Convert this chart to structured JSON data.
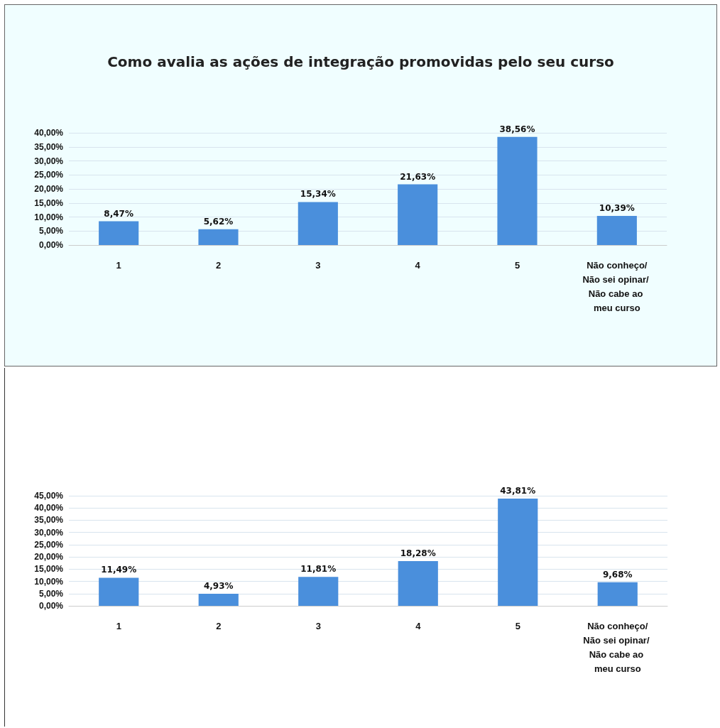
{
  "chart_data": [
    {
      "type": "bar",
      "title": "Como avalia as ações de integração promovidas pelo seu curso",
      "categories": [
        "1",
        "2",
        "3",
        "4",
        "5",
        "Não conheço/Não sei opinar/ Não cabe ao meu curso"
      ],
      "values": [
        8.47,
        5.62,
        15.34,
        21.63,
        38.56,
        10.39
      ],
      "value_labels": [
        "8,47%",
        "5,62%",
        "15,34%",
        "21,63%",
        "38,56%",
        "10,39%"
      ],
      "color": "#4a8fdc",
      "ylim": [
        0,
        40
      ],
      "yticks": [
        {
          "value": 0,
          "label": "0,00%"
        },
        {
          "value": 5,
          "label": "5,00%"
        },
        {
          "value": 10,
          "label": "10,00%"
        },
        {
          "value": 15,
          "label": "15,00%"
        },
        {
          "value": 20,
          "label": "20,00%"
        },
        {
          "value": 25,
          "label": "25,00%"
        },
        {
          "value": 30,
          "label": "30,00%"
        },
        {
          "value": 35,
          "label": "35,00%"
        },
        {
          "value": 40,
          "label": "40,00%"
        }
      ],
      "grid": "y"
    },
    {
      "type": "bar",
      "categories": [
        "1",
        "2",
        "3",
        "4",
        "5",
        "Não conheço/Não sei opinar/ Não cabe ao meu curso"
      ],
      "values": [
        11.49,
        4.93,
        11.81,
        18.28,
        43.81,
        9.68
      ],
      "value_labels": [
        "11,49%",
        "4,93%",
        "11,81%",
        "18,28%",
        "43,81%",
        "9,68%"
      ],
      "color": "#4a8fdc",
      "ylim": [
        0,
        45
      ],
      "yticks": [
        {
          "value": 0,
          "label": "0,00%"
        },
        {
          "value": 5,
          "label": "5,00%"
        },
        {
          "value": 10,
          "label": "10,00%"
        },
        {
          "value": 15,
          "label": "15,00%"
        },
        {
          "value": 20,
          "label": "20,00%"
        },
        {
          "value": 25,
          "label": "25,00%"
        },
        {
          "value": 30,
          "label": "30,00%"
        },
        {
          "value": 35,
          "label": "35,00%"
        },
        {
          "value": 40,
          "label": "40,00%"
        },
        {
          "value": 45,
          "label": "45,00%"
        }
      ],
      "grid": "y"
    }
  ]
}
